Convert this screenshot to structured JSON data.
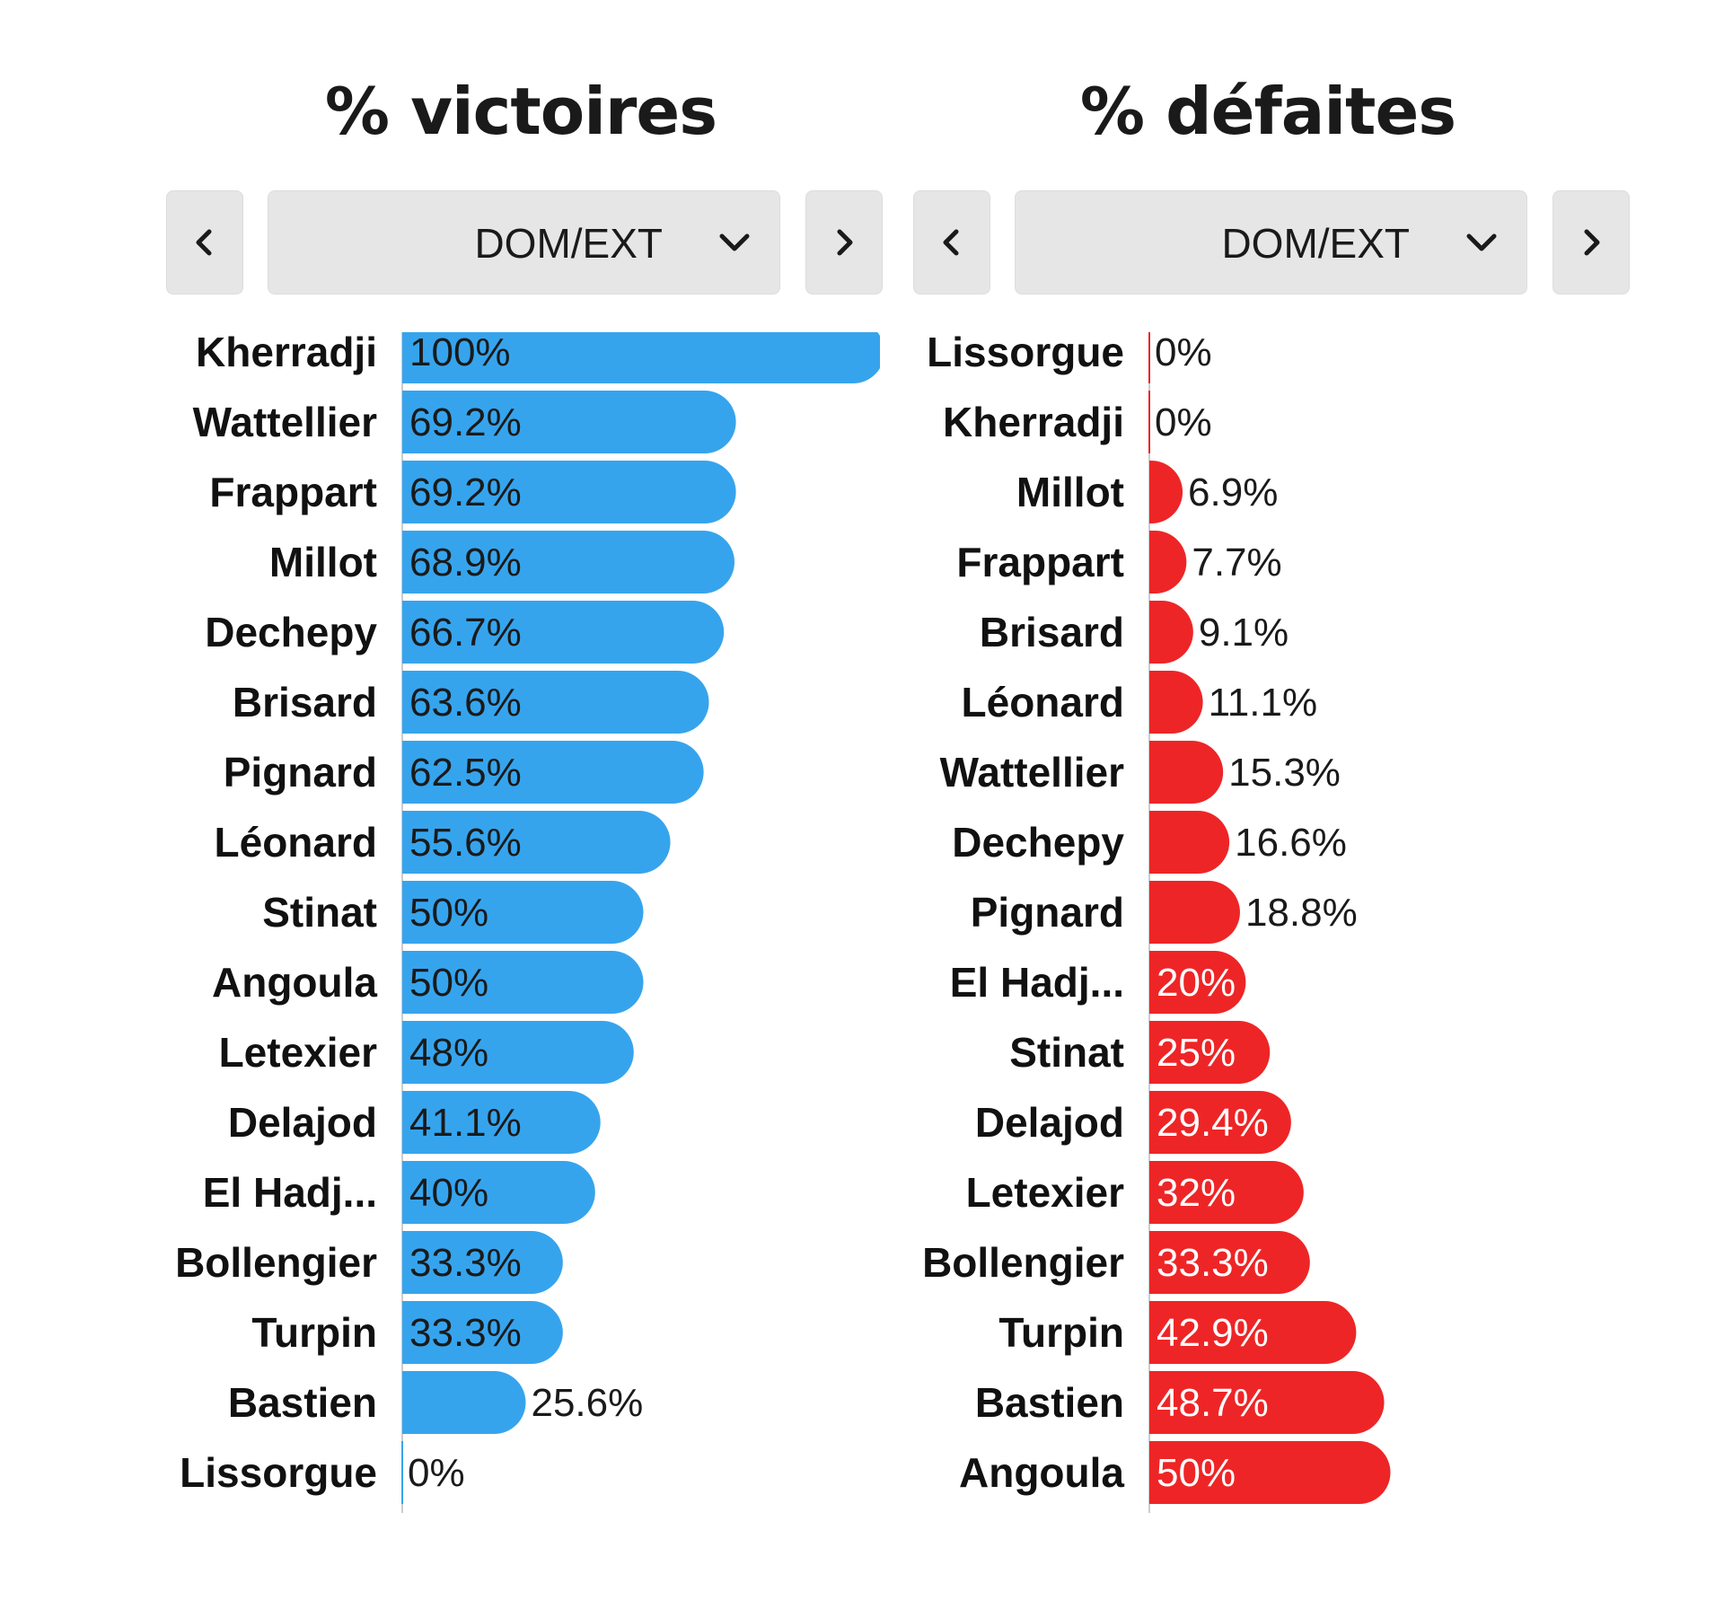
{
  "colors": {
    "win": "#36a4ed",
    "loss": "#ee2526",
    "dark_text": "#1a1a1a",
    "light_text": "#ffffff"
  },
  "icons": {
    "prev": "chevron-left-icon",
    "next": "chevron-right-icon",
    "dropdown": "chevron-down-icon"
  },
  "chart_data": [
    {
      "type": "bar",
      "orientation": "horizontal",
      "title": "% victoires",
      "filter": "DOM/EXT",
      "xlim": [
        0,
        100
      ],
      "categories": [
        "Kherradji",
        "Wattellier",
        "Frappart",
        "Millot",
        "Dechepy",
        "Brisard",
        "Pignard",
        "Léonard",
        "Stinat",
        "Angoula",
        "Letexier",
        "Delajod",
        "El Hadj...",
        "Bollengier",
        "Turpin",
        "Bastien",
        "Lissorgue"
      ],
      "values": [
        100,
        69.2,
        69.2,
        68.9,
        66.7,
        63.6,
        62.5,
        55.6,
        50,
        50,
        48,
        41.1,
        40,
        33.3,
        33.3,
        25.6,
        0
      ],
      "labels": [
        "100%",
        "69.2%",
        "69.2%",
        "68.9%",
        "66.7%",
        "63.6%",
        "62.5%",
        "55.6%",
        "50%",
        "50%",
        "48%",
        "41.1%",
        "40%",
        "33.3%",
        "33.3%",
        "25.6%",
        "0%"
      ],
      "color": "#36a4ed"
    },
    {
      "type": "bar",
      "orientation": "horizontal",
      "title": "% défaites",
      "filter": "DOM/EXT",
      "xlim": [
        0,
        100
      ],
      "categories": [
        "Lissorgue",
        "Kherradji",
        "Millot",
        "Frappart",
        "Brisard",
        "Léonard",
        "Wattellier",
        "Dechepy",
        "Pignard",
        "El Hadj...",
        "Stinat",
        "Delajod",
        "Letexier",
        "Bollengier",
        "Turpin",
        "Bastien",
        "Angoula"
      ],
      "values": [
        0,
        0,
        6.9,
        7.7,
        9.1,
        11.1,
        15.3,
        16.6,
        18.8,
        20,
        25,
        29.4,
        32,
        33.3,
        42.9,
        48.7,
        50
      ],
      "labels": [
        "0%",
        "0%",
        "6.9%",
        "7.7%",
        "9.1%",
        "11.1%",
        "15.3%",
        "16.6%",
        "18.8%",
        "20%",
        "25%",
        "29.4%",
        "32%",
        "33.3%",
        "42.9%",
        "48.7%",
        "50%"
      ],
      "color": "#ee2526"
    }
  ]
}
